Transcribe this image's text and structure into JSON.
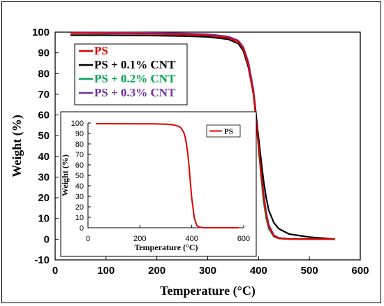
{
  "chart_data": [
    {
      "type": "line",
      "xlabel": "Temperature (°C)",
      "ylabel": "Weight (%)",
      "xlim": [
        0,
        600
      ],
      "ylim": [
        -10,
        100
      ],
      "x_ticks": [
        "0",
        "100",
        "200",
        "300",
        "400",
        "500",
        "600"
      ],
      "y_ticks": [
        "-10",
        "0",
        "10",
        "20",
        "30",
        "40",
        "50",
        "60",
        "70",
        "80",
        "90",
        "100"
      ],
      "legend_position": "top-left",
      "series": [
        {
          "name": "PS",
          "color": "#e00000",
          "x": [
            30,
            100,
            150,
            200,
            250,
            300,
            340,
            360,
            370,
            380,
            390,
            395,
            400,
            405,
            410,
            415,
            420,
            430,
            440,
            460,
            500,
            550
          ],
          "y": [
            99.5,
            99.4,
            99.3,
            99.1,
            98.9,
            98.4,
            97.3,
            95.5,
            92,
            84,
            70,
            58,
            45,
            32,
            20,
            12,
            6,
            1.5,
            0.4,
            0.1,
            0.1,
            0
          ]
        },
        {
          "name": "PS + 0.1% CNT",
          "color": "#000000",
          "x": [
            30,
            100,
            150,
            200,
            250,
            300,
            340,
            360,
            370,
            380,
            390,
            395,
            400,
            405,
            410,
            415,
            420,
            430,
            440,
            460,
            500,
            550
          ],
          "y": [
            98.5,
            98.5,
            98.4,
            98.3,
            98.1,
            97.7,
            96.6,
            94.5,
            91,
            83,
            70,
            60,
            49,
            38,
            28,
            20,
            14,
            8,
            5,
            2.5,
            1,
            0
          ]
        },
        {
          "name": "PS + 0.2% CNT",
          "color": "#00a550",
          "x": [
            30,
            100,
            150,
            200,
            250,
            300,
            340,
            360,
            370,
            380,
            390,
            395,
            400,
            405,
            410,
            415,
            420,
            430,
            440,
            460,
            500,
            550
          ],
          "y": [
            99.8,
            99.7,
            99.6,
            99.4,
            99.2,
            98.8,
            97.6,
            95.6,
            92.3,
            84.5,
            70.5,
            58,
            44,
            30,
            18,
            10,
            5,
            1.2,
            0.3,
            0.1,
            0,
            0
          ]
        },
        {
          "name": "PS + 0.3% CNT",
          "color": "#7030a0",
          "x": [
            30,
            100,
            150,
            200,
            250,
            300,
            340,
            360,
            370,
            380,
            390,
            395,
            400,
            405,
            410,
            415,
            420,
            430,
            440,
            460,
            500,
            550
          ],
          "y": [
            99.9,
            99.8,
            99.7,
            99.6,
            99.4,
            99,
            97.9,
            96,
            92.8,
            85.5,
            72,
            60.5,
            47,
            34,
            22,
            13,
            7,
            2,
            0.6,
            0.2,
            0.1,
            0
          ]
        }
      ]
    },
    {
      "type": "line",
      "xlabel": "Temperature (°C)",
      "ylabel": "Weight (%)",
      "xlim": [
        0,
        600
      ],
      "ylim": [
        0,
        100
      ],
      "x_ticks": [
        "0",
        "200",
        "400",
        "600"
      ],
      "y_ticks": [
        "0",
        "10",
        "20",
        "30",
        "40",
        "50",
        "60",
        "70",
        "80",
        "90",
        "100"
      ],
      "legend_position": "top-right",
      "series": [
        {
          "name": "PS",
          "color": "#e00000",
          "x": [
            30,
            100,
            200,
            250,
            300,
            330,
            350,
            360,
            370,
            375,
            380,
            385,
            390,
            395,
            400,
            410,
            420,
            430,
            450,
            500,
            580
          ],
          "y": [
            99.3,
            99.3,
            99.2,
            99.1,
            98.8,
            98.2,
            96.8,
            94.8,
            90.5,
            86,
            79,
            70,
            57,
            42,
            28,
            9,
            2,
            0.5,
            0,
            0,
            0
          ]
        }
      ]
    }
  ]
}
